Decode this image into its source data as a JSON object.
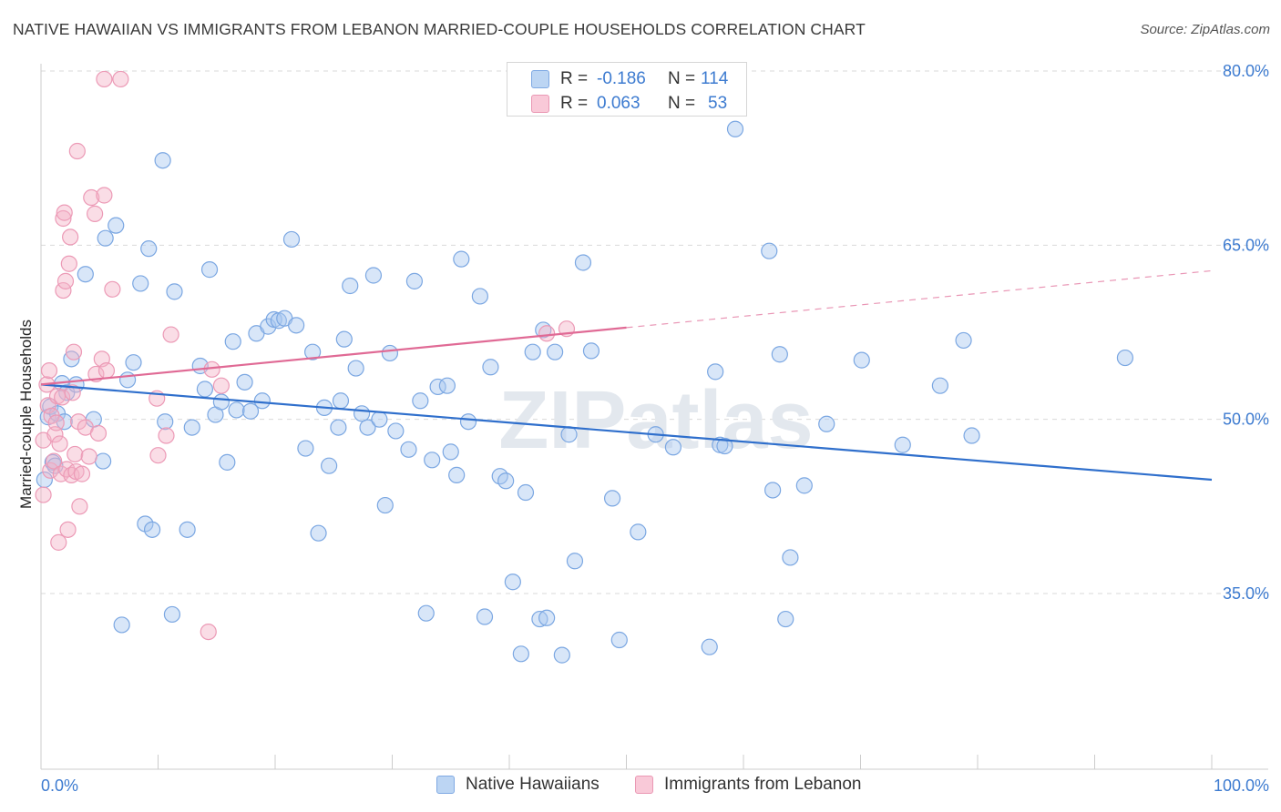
{
  "title": "NATIVE HAWAIIAN VS IMMIGRANTS FROM LEBANON MARRIED-COUPLE HOUSEHOLDS CORRELATION CHART",
  "source": "Source: ZipAtlas.com",
  "watermark": "ZIPatlas",
  "colors": {
    "blue": "#3d7bd0",
    "blue_fill": "#a9c8ef",
    "blue_line": "#2f6fcc",
    "pink": "#e06a95",
    "pink_fill": "#f4b3c8",
    "grid": "#d9d9d9",
    "axis": "#cccccc"
  },
  "legend": {
    "rows": [
      {
        "r_label": "R =",
        "r_value": "-0.186",
        "n_label": "N =",
        "n_value": "114"
      },
      {
        "r_label": "R =",
        "r_value": "0.063",
        "n_label": "N =",
        "n_value": "53"
      }
    ]
  },
  "bottom_legend": [
    "Native Hawaiians",
    "Immigrants from Lebanon"
  ],
  "chart_data": {
    "type": "scatter",
    "title": "NATIVE HAWAIIAN VS IMMIGRANTS FROM LEBANON MARRIED-COUPLE HOUSEHOLDS CORRELATION CHART",
    "xlabel": "",
    "ylabel": "Married-couple Households",
    "xlim": [
      0,
      100
    ],
    "ylim": [
      20,
      82
    ],
    "x_tick_labels": [
      "0.0%",
      "100.0%"
    ],
    "y_ticks": [
      35,
      50,
      65,
      80
    ],
    "y_tick_labels": [
      "35.0%",
      "50.0%",
      "65.0%",
      "80.0%"
    ],
    "grid": true,
    "series": [
      {
        "name": "Native Hawaiians",
        "color": "blue",
        "trend": {
          "x": [
            0,
            100
          ],
          "y": [
            53.0,
            44.8
          ]
        },
        "points": [
          [
            0.3,
            44.8
          ],
          [
            0.6,
            50.2
          ],
          [
            0.8,
            51.1
          ],
          [
            1.0,
            46.3
          ],
          [
            1.2,
            46.0
          ],
          [
            1.4,
            50.5
          ],
          [
            1.8,
            53.1
          ],
          [
            2.0,
            49.8
          ],
          [
            2.2,
            52.3
          ],
          [
            2.6,
            55.2
          ],
          [
            3.0,
            53.0
          ],
          [
            3.8,
            62.5
          ],
          [
            4.5,
            50.0
          ],
          [
            5.3,
            46.4
          ],
          [
            5.5,
            65.6
          ],
          [
            6.4,
            66.7
          ],
          [
            6.9,
            32.3
          ],
          [
            7.4,
            53.4
          ],
          [
            7.9,
            54.9
          ],
          [
            8.5,
            61.7
          ],
          [
            8.9,
            41.0
          ],
          [
            9.2,
            64.7
          ],
          [
            9.5,
            40.5
          ],
          [
            10.4,
            72.3
          ],
          [
            10.6,
            49.8
          ],
          [
            11.2,
            33.2
          ],
          [
            11.4,
            61.0
          ],
          [
            12.5,
            40.5
          ],
          [
            12.9,
            49.3
          ],
          [
            13.6,
            54.6
          ],
          [
            14.0,
            52.6
          ],
          [
            14.4,
            62.9
          ],
          [
            14.9,
            50.4
          ],
          [
            15.4,
            51.5
          ],
          [
            15.9,
            46.3
          ],
          [
            16.4,
            56.7
          ],
          [
            16.7,
            50.8
          ],
          [
            17.4,
            53.2
          ],
          [
            17.9,
            50.7
          ],
          [
            18.4,
            57.4
          ],
          [
            18.9,
            51.6
          ],
          [
            19.4,
            58.0
          ],
          [
            19.9,
            58.6
          ],
          [
            20.3,
            58.5
          ],
          [
            20.8,
            58.7
          ],
          [
            21.4,
            65.5
          ],
          [
            21.8,
            58.1
          ],
          [
            22.6,
            47.5
          ],
          [
            23.2,
            55.8
          ],
          [
            23.7,
            40.2
          ],
          [
            24.2,
            51.0
          ],
          [
            24.6,
            46.0
          ],
          [
            25.4,
            49.3
          ],
          [
            25.6,
            51.6
          ],
          [
            25.9,
            56.9
          ],
          [
            26.4,
            61.5
          ],
          [
            26.9,
            54.4
          ],
          [
            27.4,
            50.5
          ],
          [
            27.9,
            49.3
          ],
          [
            28.4,
            62.4
          ],
          [
            28.9,
            50.0
          ],
          [
            29.4,
            42.6
          ],
          [
            29.8,
            55.7
          ],
          [
            30.3,
            49.0
          ],
          [
            31.4,
            47.4
          ],
          [
            31.9,
            61.9
          ],
          [
            32.4,
            51.6
          ],
          [
            32.9,
            33.3
          ],
          [
            33.4,
            46.5
          ],
          [
            33.9,
            52.8
          ],
          [
            34.7,
            52.9
          ],
          [
            35.0,
            47.2
          ],
          [
            35.5,
            45.2
          ],
          [
            35.9,
            63.8
          ],
          [
            36.5,
            49.8
          ],
          [
            37.5,
            60.6
          ],
          [
            37.9,
            33.0
          ],
          [
            38.4,
            54.5
          ],
          [
            39.2,
            45.1
          ],
          [
            39.7,
            44.7
          ],
          [
            40.3,
            36.0
          ],
          [
            41.0,
            29.8
          ],
          [
            41.4,
            43.7
          ],
          [
            42.0,
            55.8
          ],
          [
            42.6,
            32.8
          ],
          [
            42.9,
            57.7
          ],
          [
            43.2,
            32.9
          ],
          [
            43.9,
            55.8
          ],
          [
            44.5,
            29.7
          ],
          [
            45.1,
            48.7
          ],
          [
            45.6,
            37.8
          ],
          [
            46.3,
            63.5
          ],
          [
            47.0,
            55.9
          ],
          [
            48.8,
            43.2
          ],
          [
            49.4,
            31.0
          ],
          [
            51.0,
            40.3
          ],
          [
            52.5,
            48.7
          ],
          [
            54.0,
            47.6
          ],
          [
            57.1,
            30.4
          ],
          [
            57.6,
            54.1
          ],
          [
            58.0,
            47.8
          ],
          [
            58.4,
            47.7
          ],
          [
            59.3,
            75.0
          ],
          [
            62.2,
            64.5
          ],
          [
            62.5,
            43.9
          ],
          [
            63.1,
            55.6
          ],
          [
            63.6,
            32.8
          ],
          [
            64.0,
            38.1
          ],
          [
            65.2,
            44.3
          ],
          [
            67.1,
            49.6
          ],
          [
            70.1,
            55.1
          ],
          [
            73.6,
            47.8
          ],
          [
            76.8,
            52.9
          ],
          [
            78.8,
            56.8
          ],
          [
            79.5,
            48.6
          ],
          [
            92.6,
            55.3
          ]
        ]
      },
      {
        "name": "Immigrants from Lebanon",
        "color": "pink",
        "trend": {
          "x": [
            0,
            50
          ],
          "y": [
            53.0,
            57.9
          ]
        },
        "trend_extension": {
          "x": [
            50,
            100
          ],
          "y": [
            57.9,
            62.8
          ]
        },
        "points": [
          [
            0.2,
            48.2
          ],
          [
            0.2,
            43.5
          ],
          [
            0.5,
            53.0
          ],
          [
            0.6,
            51.2
          ],
          [
            0.7,
            54.2
          ],
          [
            0.8,
            45.6
          ],
          [
            0.9,
            50.3
          ],
          [
            1.1,
            46.4
          ],
          [
            1.2,
            48.7
          ],
          [
            1.3,
            49.7
          ],
          [
            1.4,
            52.0
          ],
          [
            1.5,
            39.4
          ],
          [
            1.6,
            47.9
          ],
          [
            1.7,
            45.3
          ],
          [
            1.8,
            51.9
          ],
          [
            1.9,
            61.1
          ],
          [
            1.9,
            67.3
          ],
          [
            2.0,
            67.8
          ],
          [
            2.1,
            61.9
          ],
          [
            2.2,
            45.7
          ],
          [
            2.3,
            40.5
          ],
          [
            2.4,
            63.4
          ],
          [
            2.5,
            65.7
          ],
          [
            2.6,
            45.2
          ],
          [
            2.7,
            52.3
          ],
          [
            2.8,
            55.8
          ],
          [
            2.9,
            47.0
          ],
          [
            3.0,
            45.5
          ],
          [
            3.1,
            73.1
          ],
          [
            3.2,
            49.8
          ],
          [
            3.3,
            42.5
          ],
          [
            3.5,
            45.3
          ],
          [
            3.8,
            49.3
          ],
          [
            4.1,
            46.8
          ],
          [
            4.3,
            69.1
          ],
          [
            4.6,
            67.7
          ],
          [
            4.7,
            53.9
          ],
          [
            4.9,
            48.8
          ],
          [
            5.2,
            55.2
          ],
          [
            5.4,
            69.3
          ],
          [
            5.6,
            54.2
          ],
          [
            6.1,
            61.2
          ],
          [
            5.4,
            79.3
          ],
          [
            6.8,
            79.3
          ],
          [
            9.9,
            51.8
          ],
          [
            10.0,
            46.9
          ],
          [
            10.7,
            48.6
          ],
          [
            11.1,
            57.3
          ],
          [
            14.3,
            31.7
          ],
          [
            14.6,
            54.3
          ],
          [
            15.4,
            52.9
          ],
          [
            43.2,
            57.4
          ],
          [
            44.9,
            57.8
          ]
        ]
      }
    ]
  }
}
